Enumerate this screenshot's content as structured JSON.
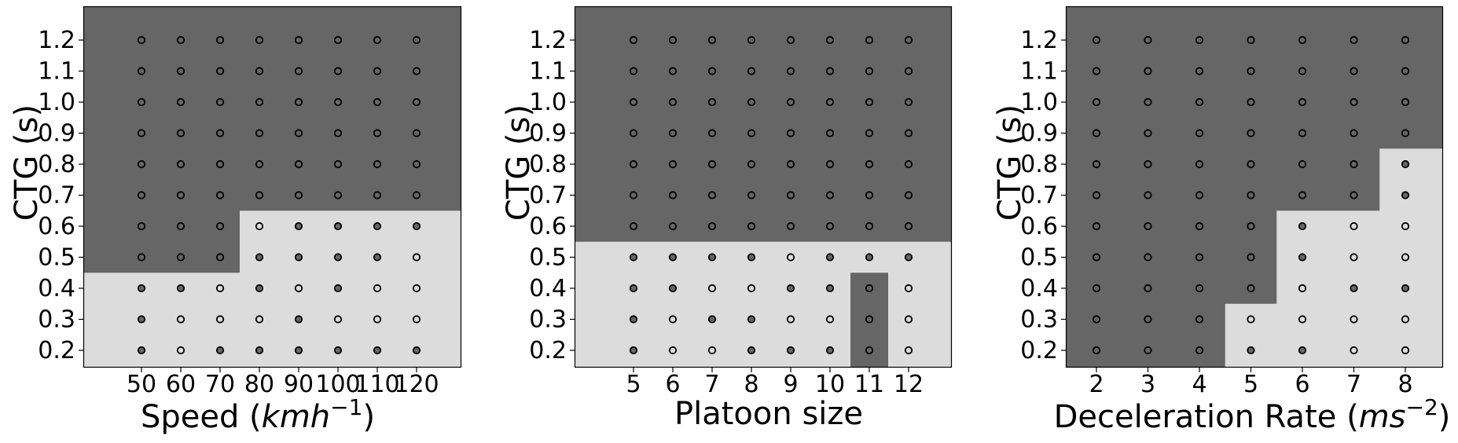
{
  "chart_data": [
    {
      "type": "scatter",
      "panel": "speed",
      "xlabel_plain": "Speed (",
      "xlabel_math": "kmh",
      "xlabel_sup": "−1",
      "xlabel_close": ")",
      "ylabel": "CTG (s)",
      "x_ticks": [
        "50",
        "60",
        "70",
        "80",
        "90",
        "100",
        "110",
        "120"
      ],
      "y_ticks": [
        "0.2",
        "0.3",
        "0.4",
        "0.5",
        "0.6",
        "0.7",
        "0.8",
        "0.9",
        "1.0",
        "1.1",
        "1.2"
      ],
      "regions": {
        "dark": "#666666",
        "light": "#dcdcdc"
      },
      "light_region_upper_ctg": [
        0.4,
        0.4,
        0.4,
        0.6,
        0.6,
        0.6,
        0.6,
        0.6
      ],
      "filled_points_ctg": [
        [
          0.2,
          0.3,
          0.4
        ],
        [
          0.4
        ],
        [
          0.2
        ],
        [
          0.2,
          0.4,
          0.5
        ],
        [
          0.2,
          0.3,
          0.5,
          0.6
        ],
        [
          0.2,
          0.4,
          0.5,
          0.6
        ],
        [
          0.2,
          0.5,
          0.6
        ],
        [
          0.2,
          0.6
        ]
      ]
    },
    {
      "type": "scatter",
      "panel": "platoon",
      "xlabel": "Platoon size",
      "ylabel": "CTG (s)",
      "x_ticks": [
        "5",
        "6",
        "7",
        "8",
        "9",
        "10",
        "11",
        "12"
      ],
      "y_ticks": [
        "0.2",
        "0.3",
        "0.4",
        "0.5",
        "0.6",
        "0.7",
        "0.8",
        "0.9",
        "1.0",
        "1.1",
        "1.2"
      ],
      "regions": {
        "dark": "#666666",
        "light": "#dcdcdc"
      },
      "light_region_upper_ctg": [
        0.5,
        0.5,
        0.5,
        0.5,
        0.5,
        0.5,
        0.5,
        0.5
      ],
      "dark_notch": {
        "x_index": 6,
        "ctg_range": [
          0.2,
          0.4
        ]
      },
      "filled_points_ctg": [
        [
          0.2,
          0.3,
          0.4,
          0.5
        ],
        [
          0.4,
          0.5
        ],
        [
          0.3,
          0.5
        ],
        [
          0.2,
          0.3,
          0.5
        ],
        [
          0.2,
          0.4
        ],
        [
          0.2,
          0.4,
          0.5
        ],
        [
          0.2,
          0.3,
          0.4,
          0.5
        ],
        [
          0.5
        ]
      ]
    },
    {
      "type": "scatter",
      "panel": "deceleration",
      "xlabel_plain": "Deceleration Rate (",
      "xlabel_math": "ms",
      "xlabel_sup": "−2",
      "xlabel_close": ")",
      "ylabel": "CTG (s)",
      "x_ticks": [
        "2",
        "3",
        "4",
        "5",
        "6",
        "7",
        "8"
      ],
      "y_ticks": [
        "0.2",
        "0.3",
        "0.4",
        "0.5",
        "0.6",
        "0.7",
        "0.8",
        "0.9",
        "1.0",
        "1.1",
        "1.2"
      ],
      "regions": {
        "dark": "#666666",
        "light": "#dcdcdc"
      },
      "light_region_upper_ctg": [
        0,
        0,
        0,
        0.3,
        0.6,
        0.6,
        0.8
      ],
      "filled_points_ctg": [
        [],
        [],
        [],
        [
          0.2
        ],
        [
          0.2,
          0.5,
          0.6
        ],
        [
          0.4
        ],
        [
          0.4,
          0.7,
          0.8
        ]
      ]
    }
  ]
}
